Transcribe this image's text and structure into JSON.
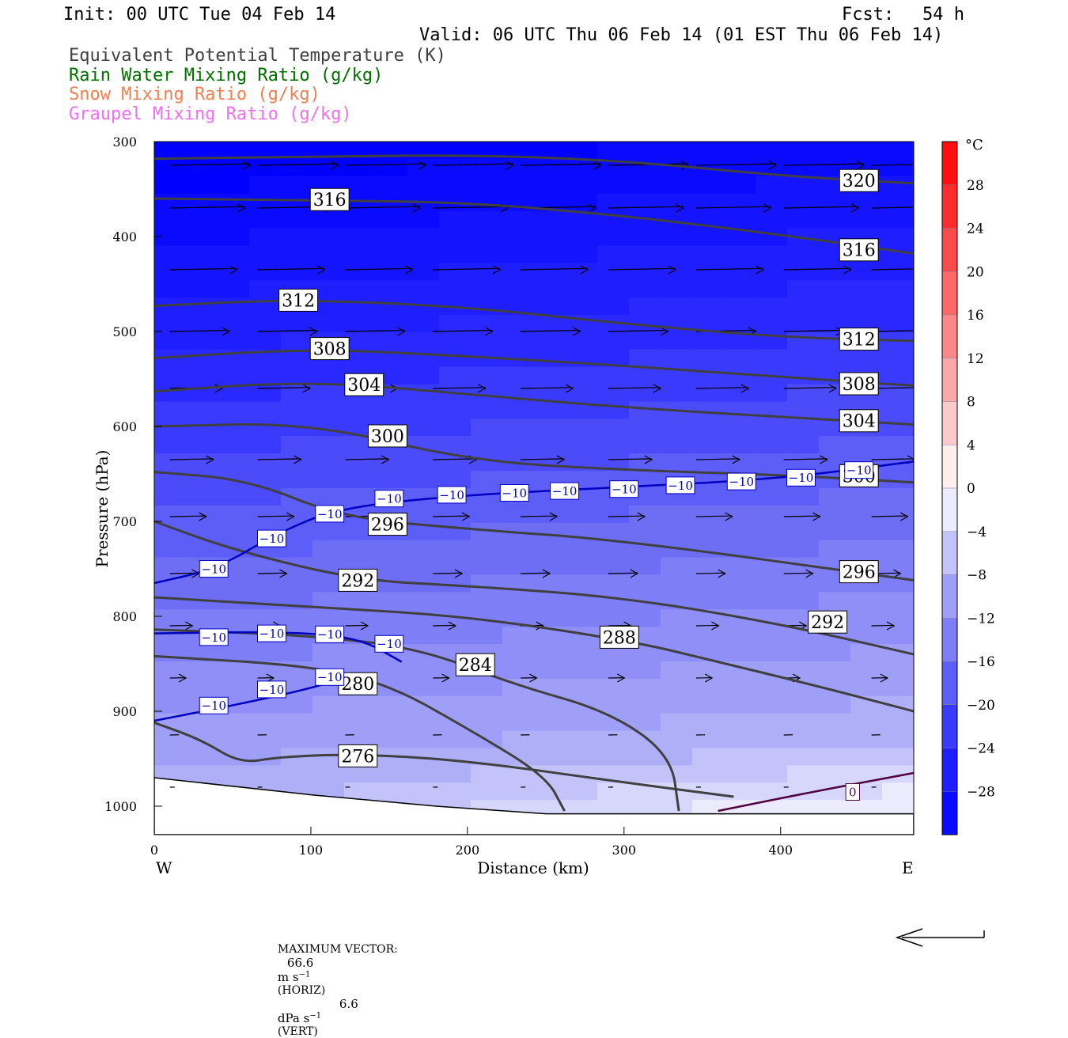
{
  "header": {
    "init": "Init: 00 UTC Tue 04 Feb 14",
    "fcst_label": "Fcst:",
    "fcst_value": "54 h",
    "valid": "Valid: 06 UTC Thu 06 Feb 14 (01 EST Thu 06 Feb 14)"
  },
  "legend": [
    {
      "label": "Equivalent Potential Temperature (K)",
      "color": "#404040"
    },
    {
      "label": "Rain Water Mixing Ratio (g/kg)",
      "color": "#007000"
    },
    {
      "label": "Snow Mixing Ratio (g/kg)",
      "color": "#f08050"
    },
    {
      "label": "Graupel Mixing Ratio (g/kg)",
      "color": "#f070f0"
    }
  ],
  "chart_data": {
    "type": "heatmap",
    "xlabel": "Distance (km)",
    "ylabel": "Pressure (hPa)",
    "xlim": [
      0,
      485
    ],
    "ylim": [
      1030,
      300
    ],
    "x_ticks": [
      0,
      100,
      200,
      300,
      400
    ],
    "y_ticks": [
      300,
      400,
      500,
      600,
      700,
      800,
      900,
      1000
    ],
    "x_ends": {
      "left": "W",
      "right": "E"
    },
    "colorbar": {
      "unit": "°C",
      "range": [
        -32,
        32
      ],
      "step": 4,
      "tick_labels": [
        "28",
        "24",
        "20",
        "16",
        "12",
        "8",
        "4",
        "0",
        "−4",
        "−8",
        "−12",
        "−16",
        "−20",
        "−24",
        "−28"
      ]
    },
    "theta_e_contours": [
      {
        "label": "320",
        "points": [
          [
            0,
            318
          ],
          [
            100,
            316
          ],
          [
            200,
            314
          ],
          [
            300,
            320
          ],
          [
            400,
            336
          ],
          [
            485,
            344
          ]
        ],
        "labels_at": [
          [
            450,
            341
          ]
        ]
      },
      {
        "label": "316",
        "points": [
          [
            0,
            360
          ],
          [
            110,
            362
          ],
          [
            200,
            364
          ],
          [
            300,
            378
          ],
          [
            400,
            398
          ],
          [
            485,
            418
          ]
        ],
        "labels_at": [
          [
            112,
            361
          ],
          [
            450,
            414
          ]
        ]
      },
      {
        "label": "312",
        "points": [
          [
            0,
            473
          ],
          [
            90,
            466
          ],
          [
            200,
            474
          ],
          [
            300,
            492
          ],
          [
            400,
            506
          ],
          [
            485,
            510
          ]
        ],
        "labels_at": [
          [
            92,
            467
          ],
          [
            450,
            508
          ]
        ]
      },
      {
        "label": "308",
        "points": [
          [
            0,
            528
          ],
          [
            100,
            518
          ],
          [
            200,
            526
          ],
          [
            300,
            536
          ],
          [
            400,
            548
          ],
          [
            485,
            557
          ]
        ],
        "labels_at": [
          [
            112,
            518
          ],
          [
            450,
            555
          ]
        ]
      },
      {
        "label": "304",
        "points": [
          [
            0,
            563
          ],
          [
            100,
            552
          ],
          [
            200,
            566
          ],
          [
            300,
            580
          ],
          [
            400,
            590
          ],
          [
            485,
            598
          ]
        ],
        "labels_at": [
          [
            134,
            556
          ],
          [
            450,
            594
          ]
        ]
      },
      {
        "label": "300",
        "points": [
          [
            0,
            600
          ],
          [
            100,
            596
          ],
          [
            200,
            636
          ],
          [
            300,
            646
          ],
          [
            400,
            651
          ],
          [
            485,
            659
          ]
        ],
        "labels_at": [
          [
            149,
            610
          ],
          [
            450,
            652
          ]
        ]
      },
      {
        "label": "296",
        "points": [
          [
            0,
            648
          ],
          [
            60,
            656
          ],
          [
            120,
            696
          ],
          [
            200,
            708
          ],
          [
            300,
            720
          ],
          [
            485,
            762
          ]
        ],
        "labels_at": [
          [
            149,
            703
          ],
          [
            450,
            753
          ]
        ]
      },
      {
        "label": "292",
        "points": [
          [
            0,
            700
          ],
          [
            50,
            730
          ],
          [
            130,
            762
          ],
          [
            200,
            768
          ],
          [
            300,
            780
          ],
          [
            400,
            808
          ],
          [
            485,
            840
          ]
        ],
        "labels_at": [
          [
            130,
            762
          ],
          [
            430,
            806
          ]
        ]
      },
      {
        "label": "288",
        "points": [
          [
            0,
            780
          ],
          [
            100,
            790
          ],
          [
            200,
            800
          ],
          [
            305,
            826
          ],
          [
            360,
            848
          ],
          [
            420,
            872
          ],
          [
            485,
            900
          ]
        ],
        "labels_at": [
          [
            297,
            822
          ]
        ]
      },
      {
        "label": "284",
        "points": [
          [
            0,
            814
          ],
          [
            100,
            820
          ],
          [
            170,
            834
          ],
          [
            230,
            872
          ],
          [
            290,
            900
          ],
          [
            330,
            946
          ],
          [
            335,
            1005
          ]
        ],
        "labels_at": [
          [
            205,
            851
          ]
        ]
      },
      {
        "label": "280",
        "points": [
          [
            0,
            842
          ],
          [
            100,
            852
          ],
          [
            150,
            872
          ],
          [
            200,
            918
          ],
          [
            250,
            968
          ],
          [
            262,
            1005
          ]
        ],
        "labels_at": [
          [
            130,
            871
          ]
        ]
      },
      {
        "label": "276",
        "points": [
          [
            0,
            912
          ],
          [
            30,
            930
          ],
          [
            55,
            955
          ],
          [
            80,
            948
          ],
          [
            130,
            945
          ],
          [
            200,
            952
          ],
          [
            300,
            975
          ],
          [
            370,
            990
          ]
        ],
        "labels_at": [
          [
            130,
            947
          ]
        ]
      }
    ],
    "isotherms_c": [
      {
        "label": "-10",
        "color": "#0000c0",
        "points": [
          [
            0,
            765
          ],
          [
            40,
            750
          ],
          [
            80,
            711
          ],
          [
            120,
            685
          ],
          [
            200,
            672
          ],
          [
            300,
            664
          ],
          [
            400,
            655
          ],
          [
            485,
            637
          ]
        ],
        "labels_at": [
          [
            38,
            750
          ],
          [
            75,
            718
          ],
          [
            112,
            692
          ],
          [
            150,
            676
          ],
          [
            190,
            672
          ],
          [
            230,
            670
          ],
          [
            262,
            668
          ],
          [
            300,
            666
          ],
          [
            336,
            662
          ],
          [
            375,
            658
          ],
          [
            413,
            654
          ],
          [
            450,
            646
          ]
        ]
      },
      {
        "label": "-10",
        "color": "#0000c0",
        "points": [
          [
            0,
            818
          ],
          [
            80,
            816
          ],
          [
            130,
            822
          ],
          [
            158,
            848
          ]
        ],
        "labels_at": [
          [
            38,
            822
          ],
          [
            75,
            818
          ],
          [
            112,
            819
          ],
          [
            150,
            829
          ]
        ]
      },
      {
        "label": "-10",
        "color": "#0000c0",
        "points": [
          [
            0,
            910
          ],
          [
            50,
            894
          ],
          [
            100,
            876
          ],
          [
            120,
            865
          ]
        ],
        "labels_at": [
          [
            38,
            894
          ],
          [
            75,
            877
          ],
          [
            112,
            864
          ]
        ]
      },
      {
        "label": "0",
        "color": "#500040",
        "points": [
          [
            360,
            1005
          ],
          [
            420,
            985
          ],
          [
            485,
            965
          ]
        ],
        "labels_at": [
          [
            446,
            985
          ]
        ]
      }
    ],
    "surface_pressure": [
      [
        0,
        970
      ],
      [
        100,
        988
      ],
      [
        180,
        1000
      ],
      [
        250,
        1008
      ],
      [
        485,
        1008
      ]
    ],
    "wind_vectors_note": "horizontal arrows, eastward, decreasing in length with pressure",
    "footer": {
      "prefix": "MAXIMUM VECTOR:",
      "horiz_value": "66.6",
      "horiz_unit": "m s",
      "horiz_exp": "−1",
      "horiz_tag": "(HORIZ)",
      "vert_value": "6.6",
      "vert_unit": "dPa s",
      "vert_exp": "−1",
      "vert_tag": "(VERT)"
    }
  }
}
